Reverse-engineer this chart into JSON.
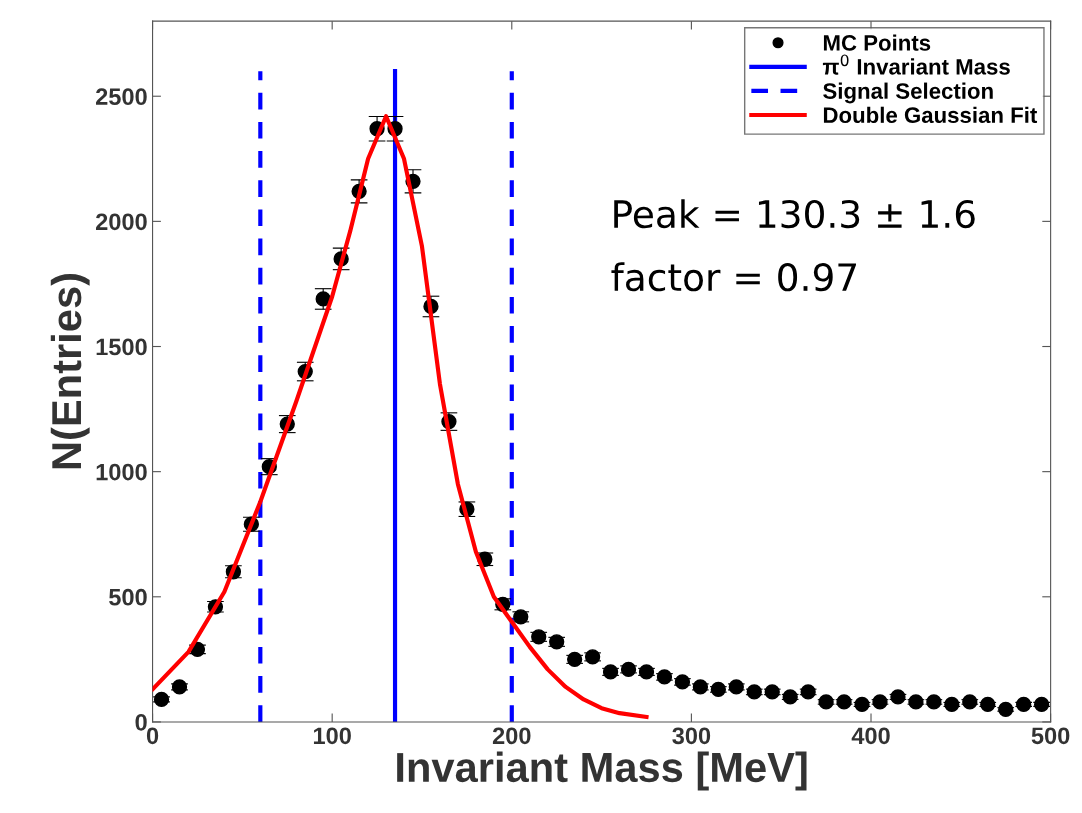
{
  "chart_data": {
    "type": "scatter",
    "xlabel": "Invariant Mass [MeV]",
    "ylabel": "N(Entries)",
    "xlim": [
      0,
      500
    ],
    "xticks": [
      0,
      100,
      200,
      300,
      400,
      500
    ],
    "ylim": [
      0,
      2800
    ],
    "yticks": [
      0,
      500,
      1000,
      1500,
      2000,
      2500
    ],
    "x": [
      5,
      15,
      25,
      35,
      45,
      55,
      65,
      75,
      85,
      95,
      105,
      115,
      125,
      135,
      145,
      155,
      165,
      175,
      185,
      195,
      205,
      215,
      225,
      235,
      245,
      255,
      265,
      275,
      285,
      295,
      305,
      315,
      325,
      335,
      345,
      355,
      365,
      375,
      385,
      395,
      405,
      415,
      425,
      435,
      445,
      455,
      465,
      475,
      485,
      495
    ],
    "series": [
      {
        "name": "MC Points",
        "marker": "circle",
        "color": "#000000",
        "values": [
          90,
          140,
          290,
          460,
          600,
          790,
          1020,
          1190,
          1400,
          1690,
          1850,
          2120,
          2370,
          2370,
          2160,
          1660,
          1200,
          850,
          650,
          470,
          420,
          340,
          320,
          250,
          260,
          200,
          210,
          200,
          180,
          160,
          140,
          130,
          140,
          120,
          120,
          100,
          120,
          80,
          80,
          70,
          80,
          100,
          80,
          80,
          70,
          80,
          70,
          50,
          70,
          70
        ],
        "errors": [
          10,
          12,
          17,
          21,
          24,
          28,
          32,
          34,
          37,
          41,
          43,
          46,
          49,
          49,
          46,
          41,
          35,
          29,
          25,
          22,
          20,
          18,
          18,
          16,
          16,
          14,
          14,
          14,
          13,
          13,
          12,
          11,
          12,
          11,
          11,
          10,
          11,
          9,
          9,
          8,
          9,
          10,
          9,
          9,
          8,
          9,
          8,
          7,
          8,
          8
        ]
      },
      {
        "name": "π$^{0}$ Invariant Mass",
        "type": "line",
        "color": "#0000ff",
        "line_style": "solid",
        "x": [
          135,
          135
        ],
        "values": [
          0,
          2600
        ]
      },
      {
        "name": "Signal Selection",
        "type": "line",
        "color": "#0000ff",
        "line_style": "dashed",
        "x": [
          60,
          60
        ],
        "values": [
          0,
          2600
        ]
      },
      {
        "type": "line",
        "color": "#0000ff",
        "line_style": "dashed",
        "x": [
          200,
          200
        ],
        "values": [
          0,
          2600
        ]
      },
      {
        "name": "Double Gaussian Fit",
        "type": "line",
        "color": "#ff0000",
        "line_style": "solid",
        "x": [
          0,
          20,
          40,
          60,
          80,
          100,
          110,
          120,
          130,
          140,
          150,
          160,
          170,
          180,
          190,
          200,
          210,
          220,
          230,
          240,
          250,
          260,
          275
        ],
        "values": [
          130,
          280,
          520,
          880,
          1280,
          1700,
          1960,
          2250,
          2420,
          2250,
          1900,
          1350,
          950,
          680,
          500,
          400,
          300,
          210,
          140,
          90,
          55,
          35,
          20
        ]
      }
    ],
    "annotations": [
      "Peak = 130.3 ± 1.6",
      "factor = 0.97"
    ],
    "legend": "top right",
    "grid": false
  }
}
